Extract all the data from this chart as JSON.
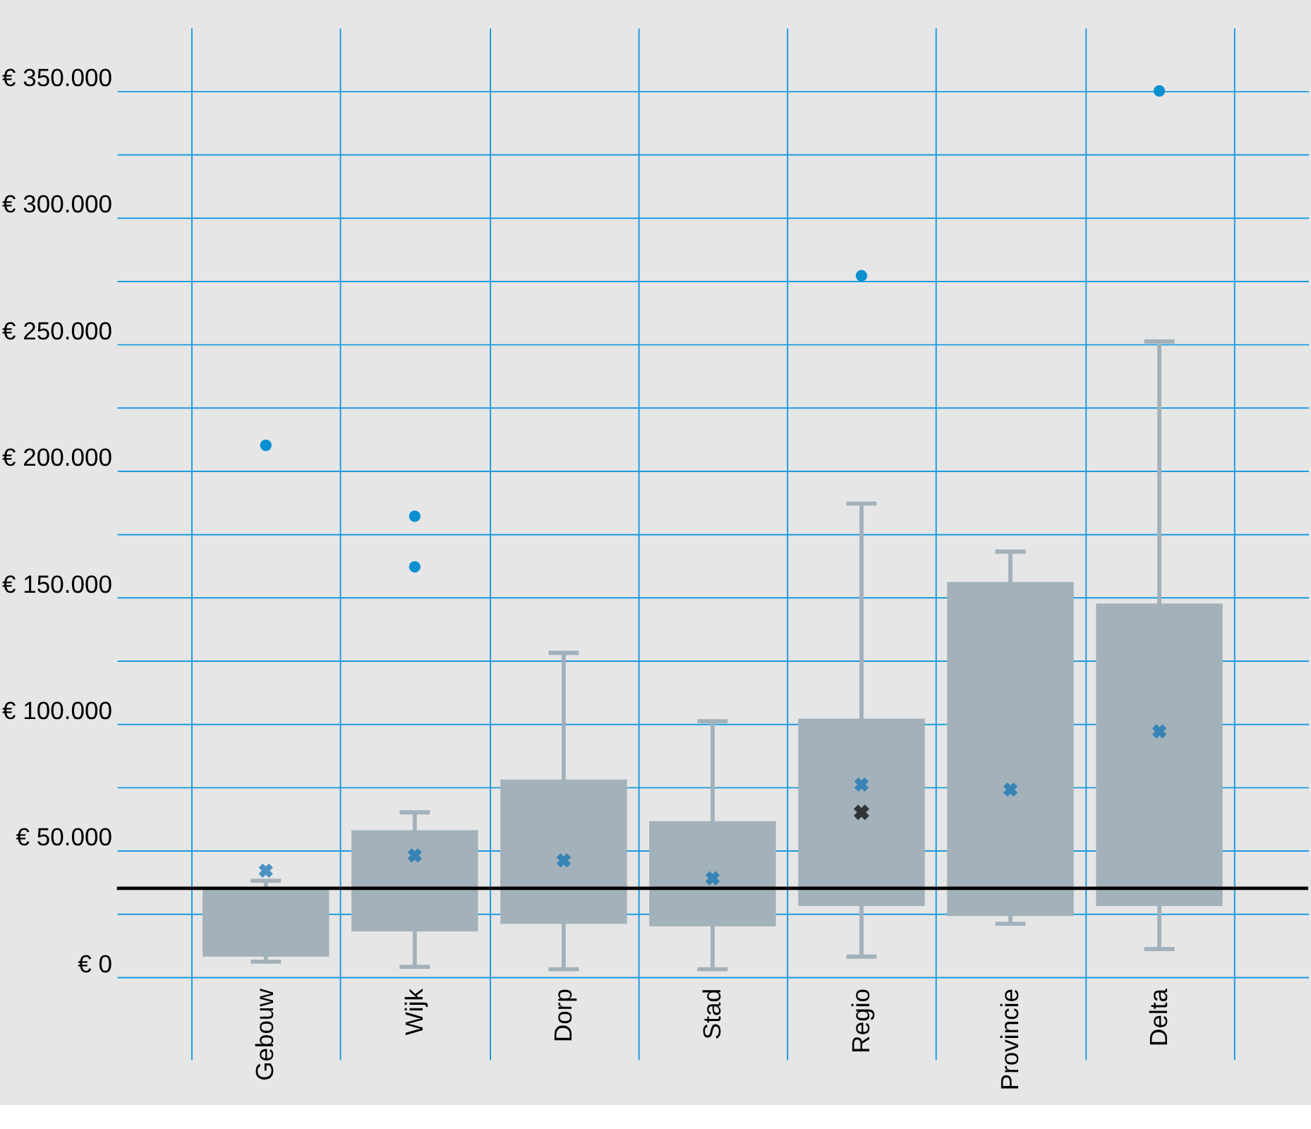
{
  "chart_data": {
    "type": "box",
    "categories": [
      "Gebouw",
      "Wijk",
      "Dorp",
      "Stad",
      "Regio",
      "Provincie",
      "Delta"
    ],
    "color": "#a2b1ba",
    "boxes": [
      {
        "low": 6000,
        "q1": 8000,
        "q3": 35000,
        "high": 38000,
        "mean": 42000,
        "outliers": [
          210000
        ]
      },
      {
        "low": 4000,
        "q1": 18000,
        "q3": 58000,
        "high": 65000,
        "mean": 48000,
        "outliers": [
          182000,
          162000
        ]
      },
      {
        "low": 3000,
        "q1": 21000,
        "q3": 78000,
        "high": 128000,
        "mean": 46000
      },
      {
        "low": 3000,
        "q1": 20000,
        "q3": 61500,
        "high": 101000,
        "mean": 39000
      },
      {
        "low": 8000,
        "q1": 28000,
        "q3": 102000,
        "high": 187000,
        "mean": 76000,
        "outliers": [
          277000
        ]
      },
      {
        "low": 21000,
        "q1": 24000,
        "q3": 156000,
        "high": 168000,
        "mean": 74000
      },
      {
        "low": 11000,
        "q1": 28000,
        "q3": 147500,
        "high": 251000,
        "mean": 97000,
        "outliers": [
          350000
        ]
      }
    ],
    "series": [
      {
        "type": "scatter",
        "x": [
          "Regio"
        ],
        "values": [
          65000
        ],
        "color": "#000000"
      }
    ],
    "marker": "cross",
    "ylim": [
      0,
      375000
    ],
    "yticks": [
      {
        "value": 0,
        "label": "€ 0"
      },
      {
        "value": 25000,
        "label": null
      },
      {
        "value": 50000,
        "label": "€ 50.000"
      },
      {
        "value": 75000,
        "label": null
      },
      {
        "value": 100000,
        "label": "€ 100.000"
      },
      {
        "value": 125000,
        "label": null
      },
      {
        "value": 150000,
        "label": "€ 150.000"
      },
      {
        "value": 175000,
        "label": null
      },
      {
        "value": 200000,
        "label": "€ 200.000"
      },
      {
        "value": 225000,
        "label": null
      },
      {
        "value": 250000,
        "label": "€ 250.000"
      },
      {
        "value": 275000,
        "label": null
      },
      {
        "value": 300000,
        "label": "€ 300.000"
      },
      {
        "value": 325000,
        "label": null
      },
      {
        "value": 350000,
        "label": "€ 350.000"
      }
    ],
    "ref_lines": [
      {
        "axis": "y",
        "value": 35000,
        "color": "#000000"
      }
    ],
    "grid": true
  }
}
